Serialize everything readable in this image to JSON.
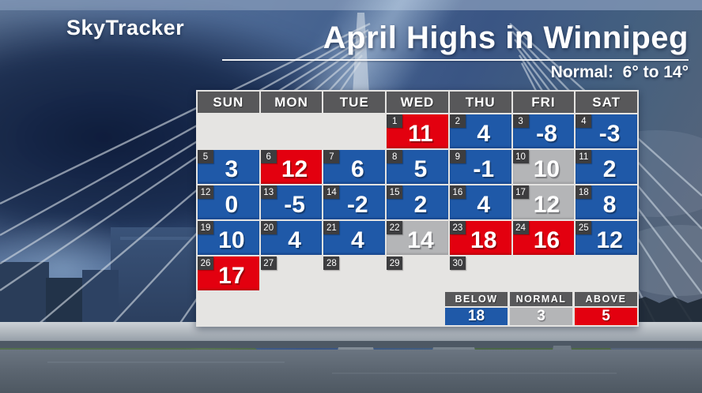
{
  "brand": {
    "logo": "SkyTracker"
  },
  "header": {
    "title": "April Highs in Winnipeg",
    "subtitle": "Normal:  6° to 14°"
  },
  "colors": {
    "below": "#1f59a8",
    "normal": "#b4b5b7",
    "above": "#e3000f",
    "empty": "#e5e4e2",
    "hdr": "#58585a",
    "daybox": "#3d3d3f"
  },
  "calendar": {
    "weekday_headers": [
      "SUN",
      "MON",
      "TUE",
      "WED",
      "THU",
      "FRI",
      "SAT"
    ],
    "cells": [
      {
        "day": null
      },
      {
        "day": null
      },
      {
        "day": null
      },
      {
        "day": 1,
        "value": "11",
        "status": "above"
      },
      {
        "day": 2,
        "value": "4",
        "status": "below"
      },
      {
        "day": 3,
        "value": "-8",
        "status": "below"
      },
      {
        "day": 4,
        "value": "-3",
        "status": "below"
      },
      {
        "day": 5,
        "value": "3",
        "status": "below"
      },
      {
        "day": 6,
        "value": "12",
        "status": "above"
      },
      {
        "day": 7,
        "value": "6",
        "status": "below"
      },
      {
        "day": 8,
        "value": "5",
        "status": "below"
      },
      {
        "day": 9,
        "value": "-1",
        "status": "below"
      },
      {
        "day": 10,
        "value": "10",
        "status": "normal"
      },
      {
        "day": 11,
        "value": "2",
        "status": "below"
      },
      {
        "day": 12,
        "value": "0",
        "status": "below"
      },
      {
        "day": 13,
        "value": "-5",
        "status": "below"
      },
      {
        "day": 14,
        "value": "-2",
        "status": "below"
      },
      {
        "day": 15,
        "value": "2",
        "status": "below"
      },
      {
        "day": 16,
        "value": "4",
        "status": "below"
      },
      {
        "day": 17,
        "value": "12",
        "status": "normal"
      },
      {
        "day": 18,
        "value": "8",
        "status": "below"
      },
      {
        "day": 19,
        "value": "10",
        "status": "below"
      },
      {
        "day": 20,
        "value": "4",
        "status": "below"
      },
      {
        "day": 21,
        "value": "4",
        "status": "below"
      },
      {
        "day": 22,
        "value": "14",
        "status": "normal"
      },
      {
        "day": 23,
        "value": "18",
        "status": "above"
      },
      {
        "day": 24,
        "value": "16",
        "status": "above"
      },
      {
        "day": 25,
        "value": "12",
        "status": "below"
      },
      {
        "day": 26,
        "value": "17",
        "status": "above"
      },
      {
        "day": 27
      },
      {
        "day": 28
      },
      {
        "day": 29
      },
      {
        "day": 30
      },
      {
        "day": null
      },
      {
        "day": null
      }
    ]
  },
  "legend": {
    "items": [
      {
        "label": "BELOW",
        "value": "18",
        "status": "below"
      },
      {
        "label": "NORMAL",
        "value": "3",
        "status": "normal"
      },
      {
        "label": "ABOVE",
        "value": "5",
        "status": "above"
      }
    ]
  },
  "chart_data": {
    "type": "heatmap",
    "title": "April Highs in Winnipeg",
    "subtitle": "Normal:  6° to 14°",
    "normal_range_c": [
      6,
      14
    ],
    "weekday_layout": [
      "SUN",
      "MON",
      "TUE",
      "WED",
      "THU",
      "FRI",
      "SAT"
    ],
    "month_start_weekday": "WED",
    "days": [
      {
        "day": 1,
        "high_c": 11,
        "category": "above"
      },
      {
        "day": 2,
        "high_c": 4,
        "category": "below"
      },
      {
        "day": 3,
        "high_c": -8,
        "category": "below"
      },
      {
        "day": 4,
        "high_c": -3,
        "category": "below"
      },
      {
        "day": 5,
        "high_c": 3,
        "category": "below"
      },
      {
        "day": 6,
        "high_c": 12,
        "category": "above"
      },
      {
        "day": 7,
        "high_c": 6,
        "category": "below"
      },
      {
        "day": 8,
        "high_c": 5,
        "category": "below"
      },
      {
        "day": 9,
        "high_c": -1,
        "category": "below"
      },
      {
        "day": 10,
        "high_c": 10,
        "category": "normal"
      },
      {
        "day": 11,
        "high_c": 2,
        "category": "below"
      },
      {
        "day": 12,
        "high_c": 0,
        "category": "below"
      },
      {
        "day": 13,
        "high_c": -5,
        "category": "below"
      },
      {
        "day": 14,
        "high_c": -2,
        "category": "below"
      },
      {
        "day": 15,
        "high_c": 2,
        "category": "below"
      },
      {
        "day": 16,
        "high_c": 4,
        "category": "below"
      },
      {
        "day": 17,
        "high_c": 12,
        "category": "normal"
      },
      {
        "day": 18,
        "high_c": 8,
        "category": "below"
      },
      {
        "day": 19,
        "high_c": 10,
        "category": "below"
      },
      {
        "day": 20,
        "high_c": 4,
        "category": "below"
      },
      {
        "day": 21,
        "high_c": 4,
        "category": "below"
      },
      {
        "day": 22,
        "high_c": 14,
        "category": "normal"
      },
      {
        "day": 23,
        "high_c": 18,
        "category": "above"
      },
      {
        "day": 24,
        "high_c": 16,
        "category": "above"
      },
      {
        "day": 25,
        "high_c": 12,
        "category": "below"
      },
      {
        "day": 26,
        "high_c": 17,
        "category": "above"
      }
    ],
    "category_counts": {
      "below": 18,
      "normal": 3,
      "above": 5
    },
    "legend_position": "bottom-right"
  }
}
